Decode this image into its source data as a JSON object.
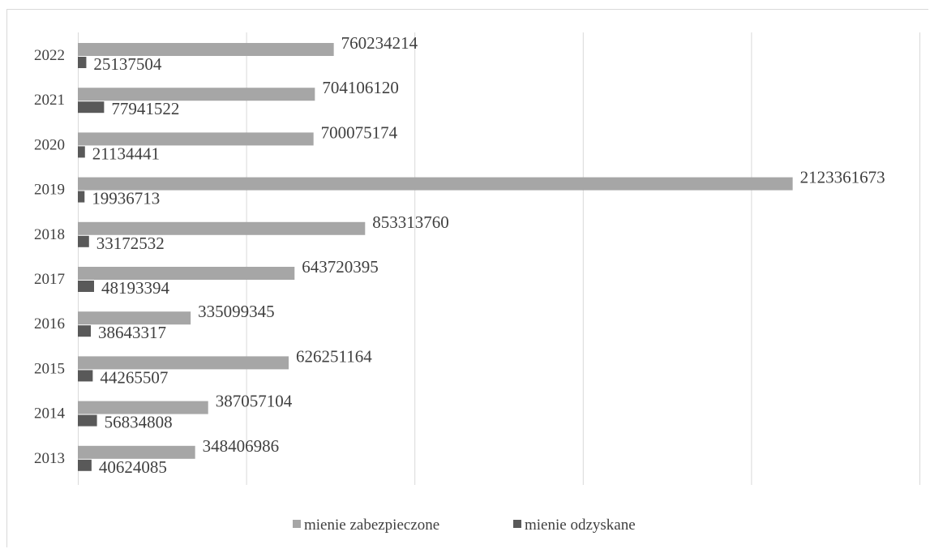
{
  "chart_data": {
    "type": "bar",
    "orientation": "horizontal",
    "categories": [
      "2022",
      "2021",
      "2020",
      "2019",
      "2018",
      "2017",
      "2016",
      "2015",
      "2014",
      "2013"
    ],
    "series": [
      {
        "name": "mienie zabezpieczone",
        "color": "#a6a6a6",
        "values": [
          760234214,
          704106120,
          700075174,
          2123361673,
          853313760,
          643720395,
          335099345,
          626251164,
          387057104,
          348406986
        ],
        "labels": [
          "760234214",
          "704106120",
          "700075174",
          "2123361673",
          "853313760",
          "643720395",
          "335099345",
          "626251164",
          "387057104",
          "348406986"
        ]
      },
      {
        "name": "mienie odzyskane",
        "color": "#595959",
        "values": [
          25137504,
          77941522,
          21134441,
          19936713,
          33172532,
          48193394,
          38643317,
          44265507,
          56834808,
          40624085
        ],
        "labels": [
          "25137504",
          "77941522",
          "21134441",
          "19936713",
          "33172532",
          "48193394",
          "38643317",
          "44265507",
          "56834808",
          "40624085"
        ]
      }
    ],
    "xlim": [
      0,
      2500000000
    ],
    "x_gridlines": [
      0,
      500000000,
      1000000000,
      1500000000,
      2000000000,
      2500000000
    ],
    "grid": true,
    "legend": "bottom"
  }
}
